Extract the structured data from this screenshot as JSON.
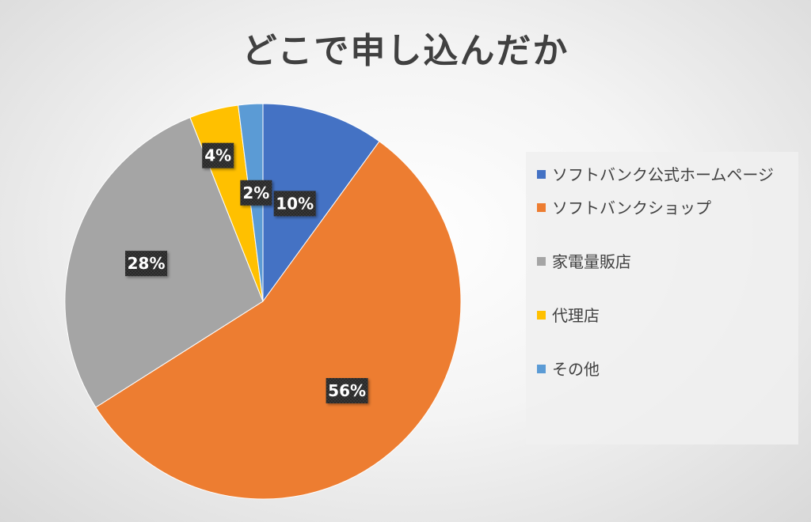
{
  "chart_data": {
    "type": "pie",
    "title": "どこで申し込んだか",
    "categories": [
      "ソフトバンク公式ホームページ",
      "ソフトバンクショップ",
      "家電量販店",
      "代理店",
      "その他"
    ],
    "values": [
      10,
      56,
      28,
      4,
      2
    ],
    "data_labels": [
      "10%",
      "56%",
      "28%",
      "4%",
      "2%"
    ],
    "colors": [
      "#4472C4",
      "#ED7D31",
      "#A5A5A5",
      "#FFC000",
      "#5B9BD5"
    ],
    "legend_position": "right"
  }
}
